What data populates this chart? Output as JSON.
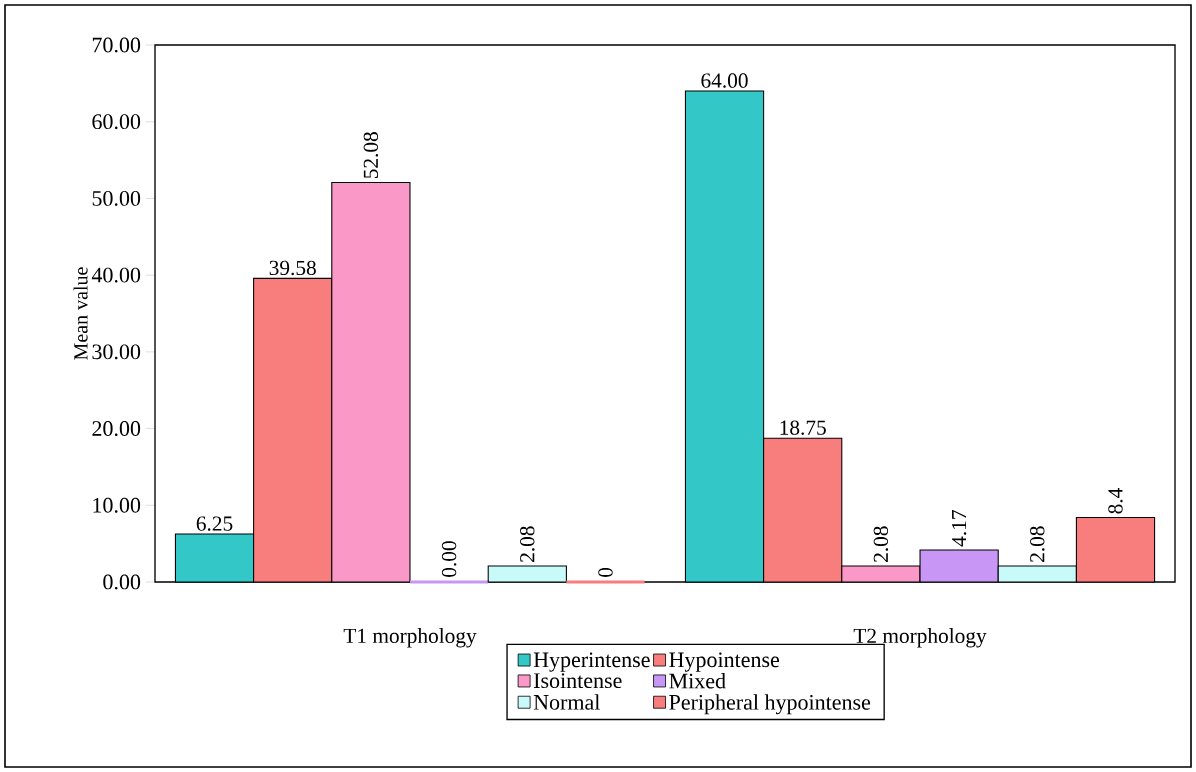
{
  "chart_data": {
    "type": "bar",
    "ylabel": "Mean value",
    "categories": [
      "T1 morphology",
      "T2 morphology"
    ],
    "series": [
      {
        "name": "Hyperintense",
        "color": "#33c7c7",
        "values": [
          6.25,
          64.0
        ],
        "value_labels": [
          "6.25",
          "64.00"
        ]
      },
      {
        "name": "Hypointense",
        "color": "#f87e7e",
        "values": [
          39.58,
          18.75
        ],
        "value_labels": [
          "39.58",
          "18.75"
        ]
      },
      {
        "name": "Isointense",
        "color": "#fa98c8",
        "values": [
          52.08,
          2.08
        ],
        "value_labels": [
          "52.08",
          "2.08"
        ]
      },
      {
        "name": "Mixed",
        "color": "#c896f5",
        "values": [
          0.0,
          4.17
        ],
        "value_labels": [
          "0.00",
          "4.17"
        ]
      },
      {
        "name": "Normal",
        "color": "#c8fafa",
        "values": [
          2.08,
          2.08
        ],
        "value_labels": [
          "2.08",
          "2.08"
        ]
      },
      {
        "name": "Peripheral hypointense",
        "color": "#f87e7e",
        "values": [
          0,
          8.4
        ],
        "value_labels": [
          "0",
          "8.4"
        ]
      }
    ],
    "ylim": [
      0,
      70
    ],
    "yticks": [
      {
        "value": 0,
        "label": "0.00"
      },
      {
        "value": 10,
        "label": "10.00"
      },
      {
        "value": 20,
        "label": "20.00"
      },
      {
        "value": 30,
        "label": "30.00"
      },
      {
        "value": 40,
        "label": "40.00"
      },
      {
        "value": 50,
        "label": "50.00"
      },
      {
        "value": 60,
        "label": "60.00"
      },
      {
        "value": 70,
        "label": "70.00"
      }
    ],
    "legend": "bottom"
  }
}
